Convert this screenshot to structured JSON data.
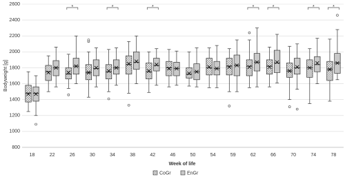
{
  "chart_data": {
    "type": "box",
    "y_label": "Bodyweight [g]",
    "x_label": "Week of life",
    "categories": [
      "18",
      "22",
      "26",
      "30",
      "34",
      "38",
      "42",
      "46",
      "50",
      "54",
      "59",
      "62",
      "66",
      "70",
      "74",
      "78"
    ],
    "significance": [
      null,
      null,
      "*",
      null,
      "*",
      null,
      "*",
      null,
      null,
      null,
      null,
      "*",
      "*",
      null,
      "*",
      "*"
    ],
    "ylim": [
      800,
      2600
    ],
    "yticks": [
      800,
      1000,
      1200,
      1400,
      1600,
      1800,
      2000,
      2200,
      2400,
      2600
    ],
    "grid": true,
    "legend": "bottom",
    "series": [
      {
        "name": "CoGr",
        "color": "#e6e6e6",
        "pattern": "checker",
        "whislo": [
          1250,
          1500,
          1540,
          1430,
          1500,
          1480,
          1490,
          1560,
          1570,
          1550,
          1500,
          1550,
          1560,
          1400,
          1350,
          1380
        ],
        "q1": [
          1370,
          1640,
          1660,
          1650,
          1660,
          1720,
          1660,
          1700,
          1670,
          1710,
          1710,
          1700,
          1720,
          1680,
          1680,
          1640
        ],
        "med": [
          1480,
          1750,
          1720,
          1740,
          1750,
          1840,
          1750,
          1800,
          1720,
          1800,
          1820,
          1820,
          1820,
          1760,
          1800,
          1780
        ],
        "q3": [
          1580,
          1830,
          1800,
          1840,
          1840,
          1950,
          1860,
          1880,
          1800,
          1920,
          1920,
          1900,
          1900,
          1860,
          1900,
          1880
        ],
        "whishi": [
          1750,
          1950,
          1970,
          2000,
          2030,
          2130,
          2000,
          2030,
          2000,
          2050,
          2040,
          2150,
          2060,
          2070,
          2040,
          2160
        ],
        "mean": [
          1470,
          1740,
          1740,
          1740,
          1760,
          1850,
          1760,
          1790,
          1730,
          1810,
          1810,
          1810,
          1810,
          1760,
          1800,
          1780
        ],
        "fliers": [
          [],
          [],
          [
            1460
          ],
          [
            2130,
            2150
          ],
          [
            1410
          ],
          [
            1330
          ],
          [],
          [],
          [],
          [],
          [
            1320
          ],
          [
            2240
          ],
          [],
          [
            1310
          ],
          [],
          []
        ]
      },
      {
        "name": "EnGr",
        "color": "#c9c9c9",
        "whislo": [
          1200,
          1560,
          1600,
          1560,
          1580,
          1600,
          1580,
          1580,
          1560,
          1550,
          1500,
          1560,
          1610,
          1530,
          1600,
          1650
        ],
        "q1": [
          1380,
          1700,
          1720,
          1700,
          1720,
          1780,
          1760,
          1700,
          1650,
          1710,
          1700,
          1760,
          1740,
          1720,
          1750,
          1730
        ],
        "med": [
          1480,
          1800,
          1820,
          1790,
          1800,
          1870,
          1830,
          1790,
          1750,
          1790,
          1830,
          1870,
          1860,
          1800,
          1840,
          1860
        ],
        "q3": [
          1560,
          1890,
          1920,
          1900,
          1900,
          2000,
          1920,
          1870,
          1850,
          1880,
          1960,
          1980,
          2020,
          1920,
          1940,
          1980
        ],
        "whishi": [
          1700,
          2060,
          2200,
          2050,
          2050,
          2200,
          2040,
          2010,
          2050,
          2080,
          2150,
          2300,
          2220,
          2100,
          2170,
          2280
        ],
        "mean": [
          1470,
          1800,
          1820,
          1800,
          1800,
          1880,
          1840,
          1790,
          1750,
          1790,
          1830,
          1870,
          1870,
          1810,
          1860,
          1860
        ],
        "fliers": [
          [
            1090
          ],
          [],
          [],
          [],
          [],
          [],
          [],
          [],
          [],
          [],
          [],
          [],
          [],
          [
            1280
          ],
          [],
          [
            2460
          ]
        ]
      }
    ]
  }
}
